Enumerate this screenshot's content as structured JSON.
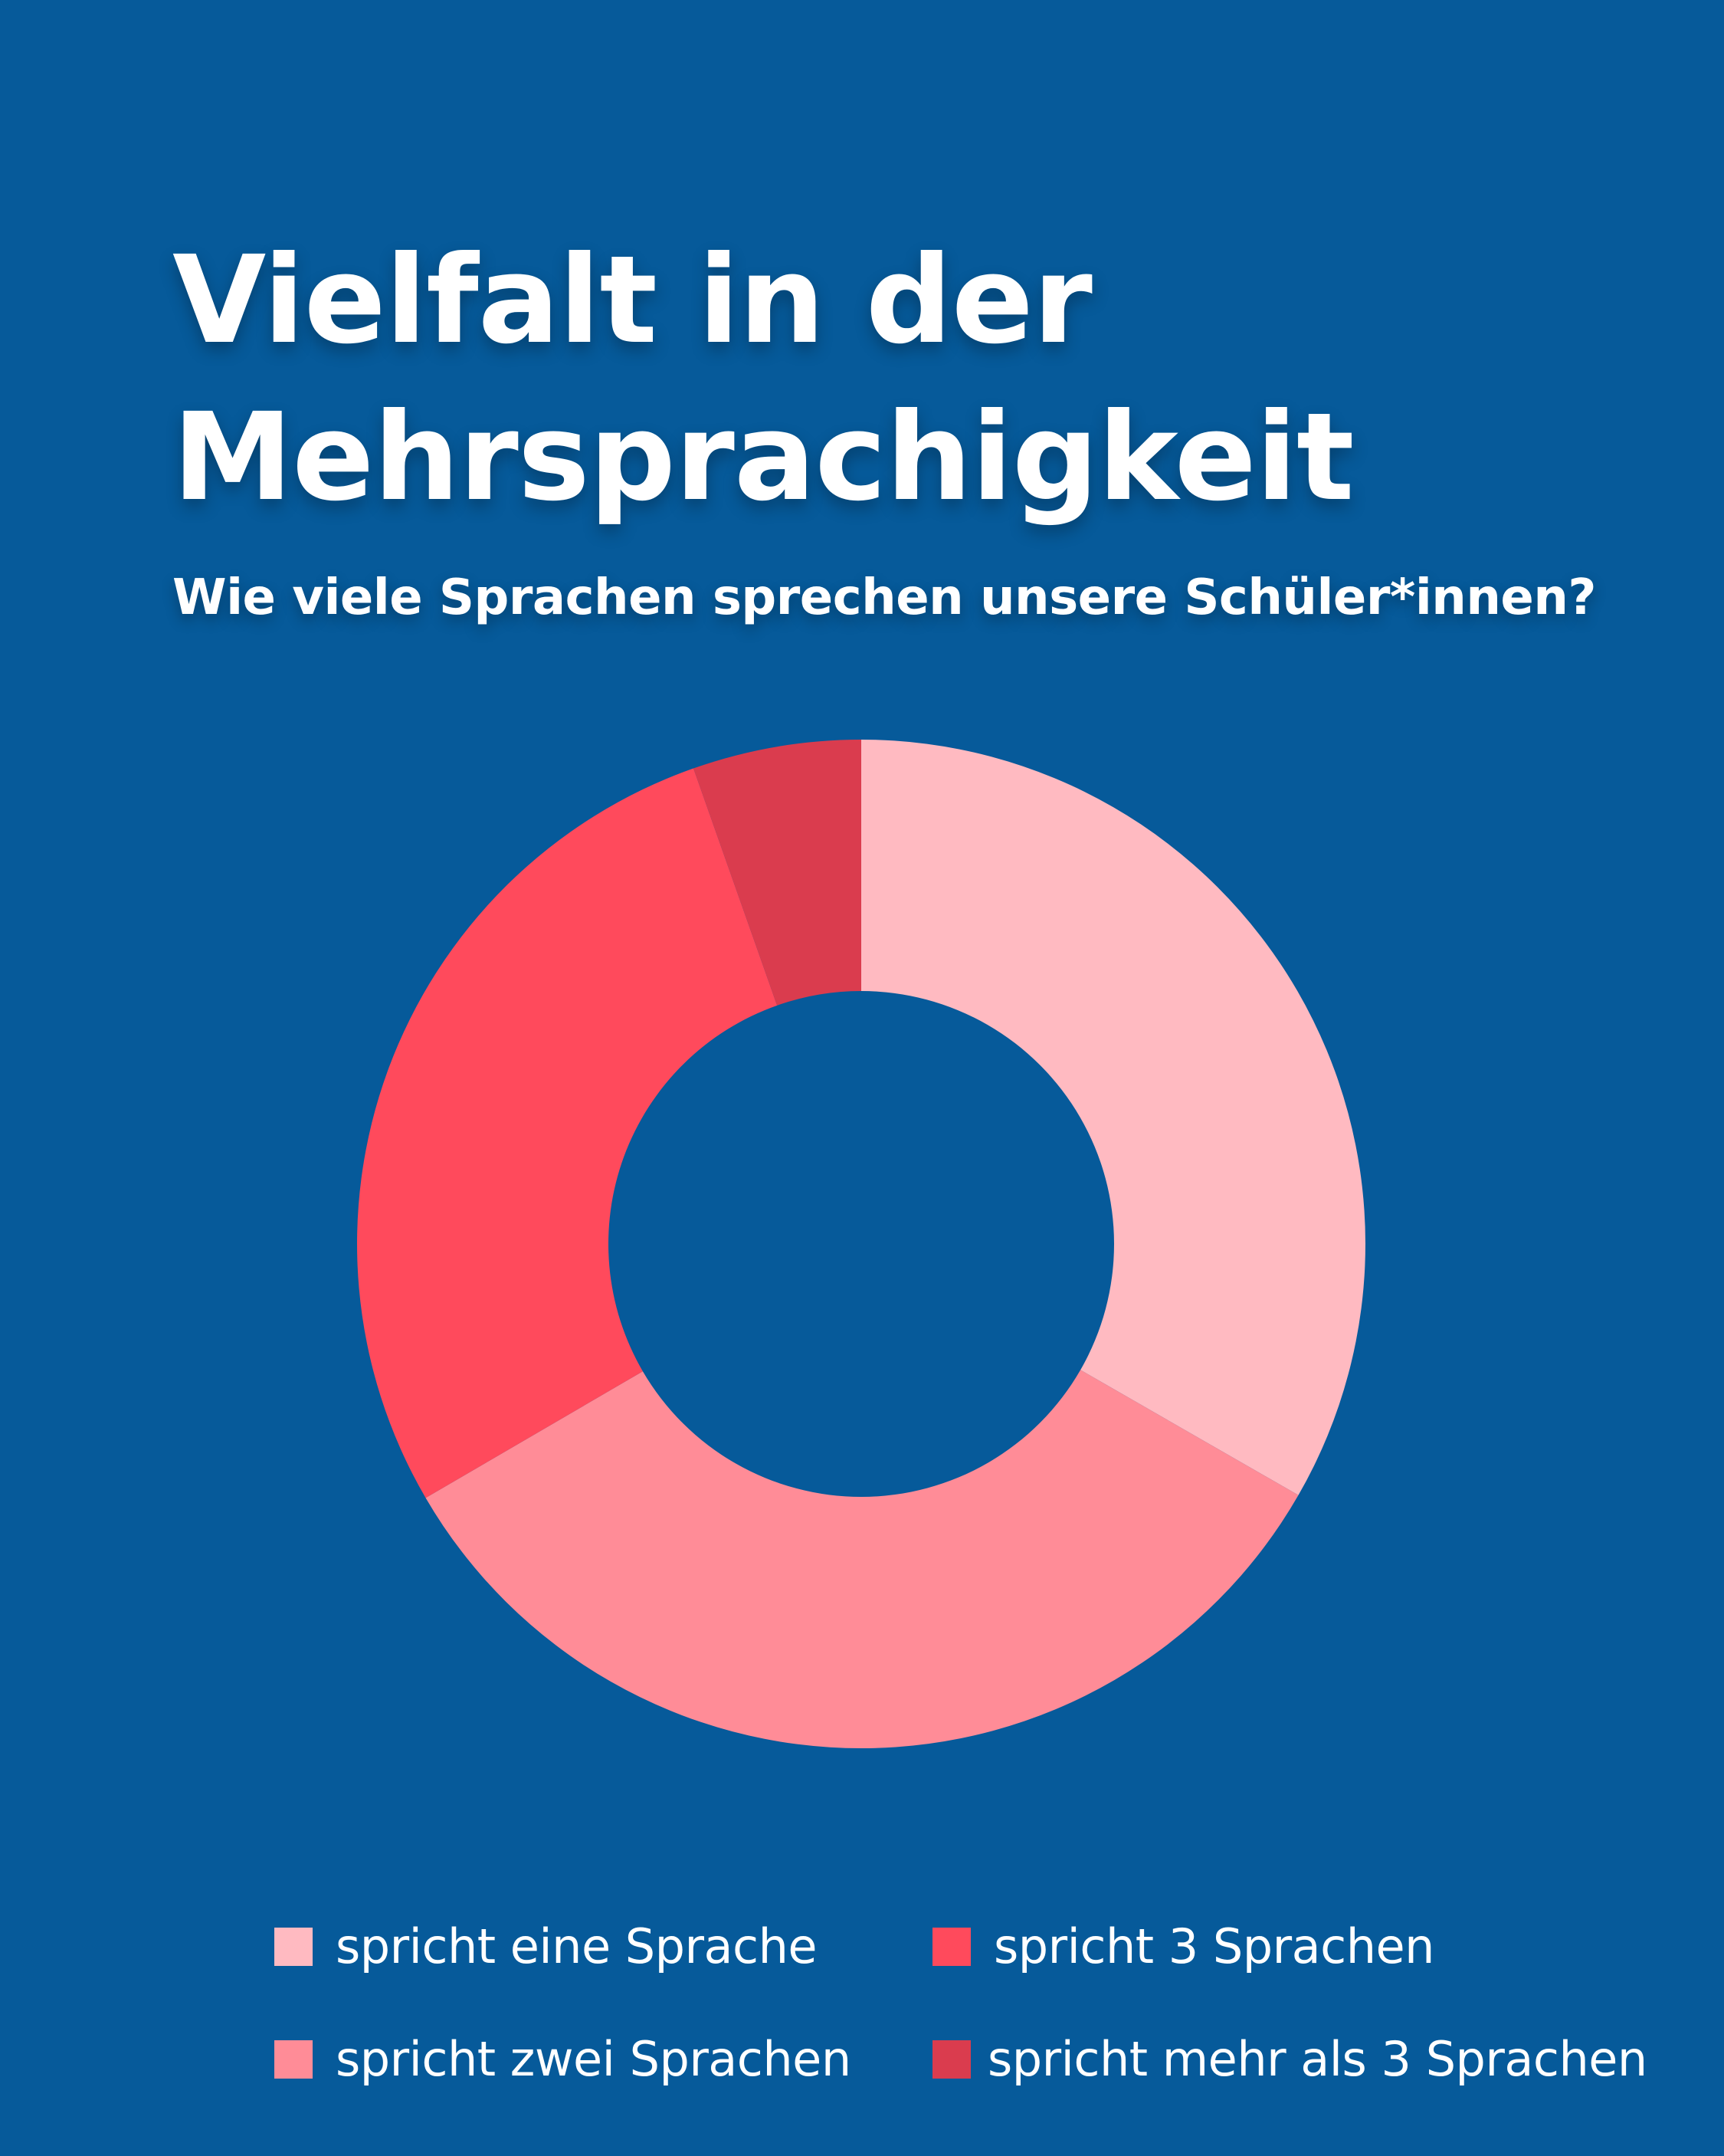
{
  "header": {
    "title_line1": "Vielfalt in der",
    "title_line2": "Mehrsprachigkeit",
    "subtitle": "Wie viele Sprachen sprechen unsere Schüler*innen?"
  },
  "colors": {
    "background": "#065a9a",
    "text": "#ffffff"
  },
  "chart_data": {
    "type": "pie",
    "subtype": "donut",
    "title": "Vielfalt in der Mehrsprachigkeit",
    "subtitle": "Wie viele Sprachen sprechen unsere Schüler*innen?",
    "categories": [
      "spricht eine Sprache",
      "spricht zwei Sprachen",
      "spricht 3 Sprachen",
      "spricht mehr als 3 Sprachen"
    ],
    "values": [
      33.3,
      33.3,
      28.0,
      5.4
    ],
    "colors": [
      "#ffbac1",
      "#ff8c97",
      "#ff4a5c",
      "#da3c4e"
    ],
    "legend": {
      "position": "bottom",
      "columns": 2
    }
  }
}
